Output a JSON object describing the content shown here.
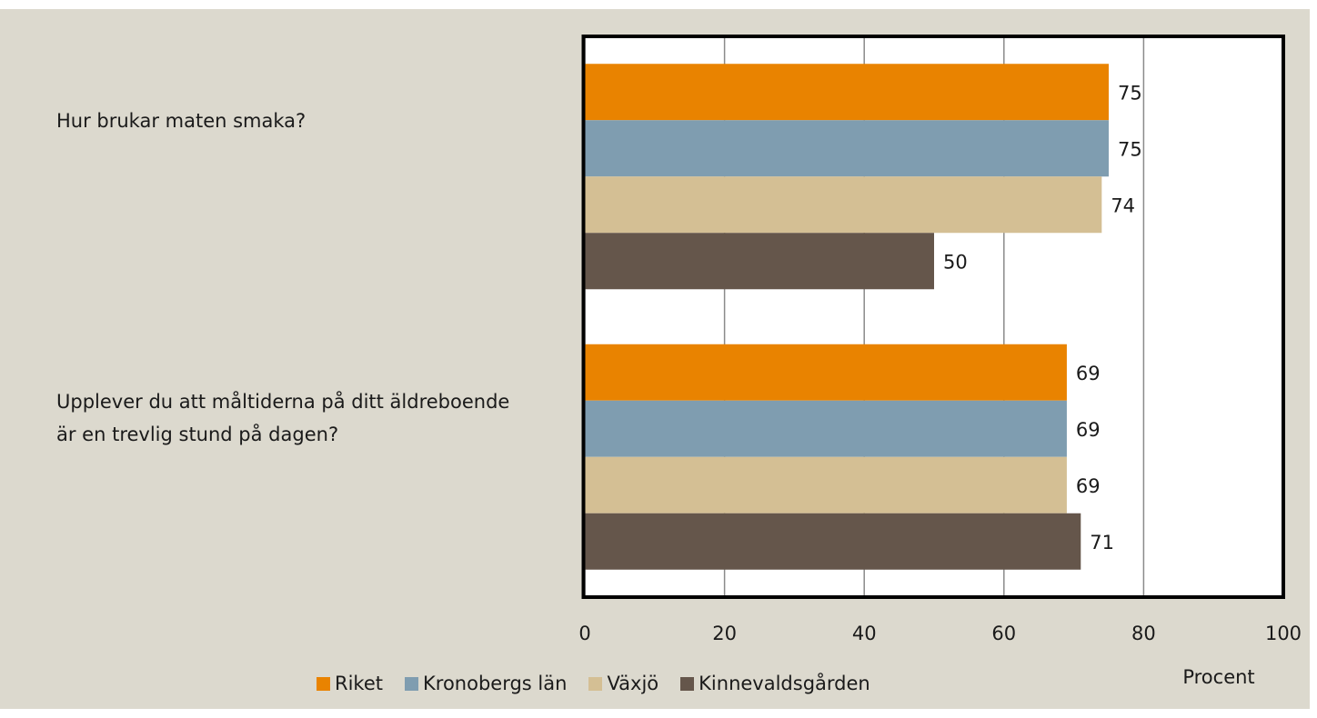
{
  "chart_data": {
    "type": "hbar",
    "categories": [
      "Hur brukar maten smaka?",
      "Upplever du att måltiderna på ditt äldreboende är en trevlig stund på dagen?"
    ],
    "series": [
      {
        "name": "Riket",
        "color": "#e98300",
        "values": [
          75,
          69
        ]
      },
      {
        "name": "Kronobergs län",
        "color": "#7f9db0",
        "values": [
          75,
          69
        ]
      },
      {
        "name": "Växjö",
        "color": "#d4bf94",
        "values": [
          74,
          69
        ]
      },
      {
        "name": "Kinnevaldsgården",
        "color": "#65564b",
        "values": [
          50,
          71
        ]
      }
    ],
    "xlabel": "Procent",
    "xlim": [
      0,
      100
    ],
    "xticks": [
      0,
      20,
      40,
      60,
      80,
      100
    ],
    "grid": true,
    "legend": "bottom"
  }
}
